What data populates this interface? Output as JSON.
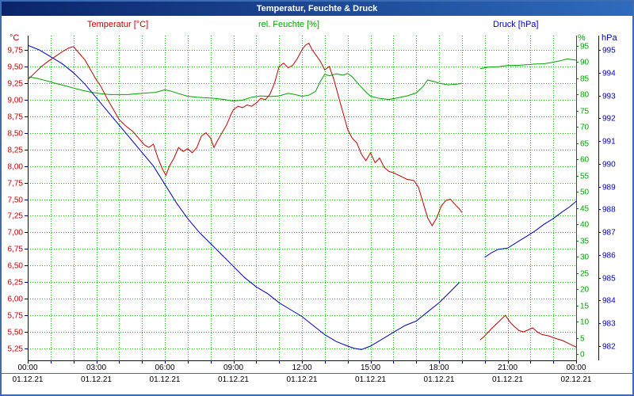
{
  "window": {
    "title": "Temperatur, Feuchte & Druck"
  },
  "chart_data": {
    "type": "line",
    "title": "Temperatur, Feuchte & Druck",
    "grid": {
      "color": "#00c800",
      "style": "dotted"
    },
    "frame_color": "#000080",
    "x": {
      "unit": "hours",
      "range": [
        0,
        24
      ],
      "major_tick_hours": 3,
      "minor_tick_hours": 1,
      "time_labels": [
        "00:00",
        "03:00",
        "06:00",
        "09:00",
        "12:00",
        "15:00",
        "18:00",
        "21:00",
        "00:00"
      ],
      "date_labels": [
        "01.12.21",
        "01.12.21",
        "01.12.21",
        "01.12.21",
        "01.12.21",
        "01.12.21",
        "01.12.21",
        "01.12.21",
        "02.12.21"
      ]
    },
    "axes": {
      "temperature": {
        "title": "Temperatur [°C]",
        "unit": "°C",
        "color": "#c00000",
        "min": 5.25,
        "max": 9.75,
        "step": 0.25,
        "tick_labels": [
          "9,75",
          "9,50",
          "9,25",
          "9,00",
          "8,75",
          "8,50",
          "8,25",
          "8,00",
          "7,75",
          "7,50",
          "7,25",
          "7,00",
          "6,75",
          "6,50",
          "6,25",
          "6,00",
          "5,75",
          "5,50",
          "5,25"
        ]
      },
      "humidity": {
        "title": "rel. Feuchte [%]",
        "unit": "%",
        "color": "#00a000",
        "min": 0,
        "max": 95,
        "step": 5,
        "tick_labels": [
          "95",
          "90",
          "85",
          "80",
          "75",
          "70",
          "65",
          "60",
          "55",
          "50",
          "45",
          "40",
          "35",
          "30",
          "25",
          "20",
          "15",
          "10",
          "5",
          "0"
        ]
      },
      "pressure": {
        "title": "Druck [hPa]",
        "unit": "hPa",
        "color": "#0000c0",
        "min": 982,
        "max": 995,
        "step": 1,
        "tick_labels": [
          "995",
          "994",
          "993",
          "992",
          "991",
          "990",
          "989",
          "988",
          "987",
          "986",
          "985",
          "984",
          "983",
          "982"
        ]
      }
    },
    "series": [
      {
        "name": "rel. Feuchte",
        "axis": "humidity",
        "segments": [
          [
            [
              0,
              85.5
            ],
            [
              0.4,
              85
            ],
            [
              0.8,
              84.3
            ],
            [
              1.2,
              83.5
            ],
            [
              1.6,
              82.8
            ],
            [
              2,
              82
            ],
            [
              2.4,
              81.3
            ],
            [
              2.8,
              80.7
            ],
            [
              3.2,
              80.3
            ],
            [
              3.6,
              80
            ],
            [
              4,
              80
            ],
            [
              4.4,
              80
            ],
            [
              4.8,
              80.3
            ],
            [
              5.2,
              80.5
            ],
            [
              5.6,
              80.7
            ],
            [
              6,
              81.5
            ],
            [
              6.3,
              81
            ],
            [
              6.6,
              80.3
            ],
            [
              7,
              79.5
            ],
            [
              7.4,
              79.2
            ],
            [
              7.8,
              79
            ],
            [
              8.2,
              78.8
            ],
            [
              8.6,
              78.5
            ],
            [
              9,
              78
            ],
            [
              9.4,
              78.3
            ],
            [
              9.8,
              79.2
            ],
            [
              10.2,
              79.6
            ],
            [
              10.6,
              79.4
            ],
            [
              11,
              79.6
            ],
            [
              11.4,
              80.4
            ],
            [
              11.7,
              80
            ],
            [
              12,
              79.5
            ],
            [
              12.3,
              79.8
            ],
            [
              12.6,
              81
            ],
            [
              12.8,
              84
            ],
            [
              13,
              86.3
            ],
            [
              13.2,
              85.8
            ],
            [
              13.5,
              86.4
            ],
            [
              13.8,
              86
            ],
            [
              14,
              86.5
            ],
            [
              14.2,
              85.5
            ],
            [
              14.5,
              83
            ],
            [
              14.8,
              80.8
            ],
            [
              15,
              79.5
            ],
            [
              15.4,
              78.8
            ],
            [
              15.8,
              78.5
            ],
            [
              16.2,
              79
            ],
            [
              16.6,
              79.6
            ],
            [
              17,
              80.5
            ],
            [
              17.3,
              82.5
            ],
            [
              17.5,
              84.5
            ],
            [
              17.8,
              84
            ],
            [
              18,
              83.5
            ],
            [
              18.4,
              83
            ],
            [
              18.8,
              83.2
            ],
            [
              19,
              83.5
            ]
          ],
          [
            [
              19.8,
              88
            ],
            [
              20.2,
              88.5
            ],
            [
              20.6,
              88.6
            ],
            [
              21,
              89
            ],
            [
              21.4,
              89
            ],
            [
              21.8,
              89.2
            ],
            [
              22.2,
              89.4
            ],
            [
              22.6,
              89.5
            ],
            [
              23,
              90
            ],
            [
              23.3,
              90.4
            ],
            [
              23.6,
              91
            ],
            [
              24,
              90.6
            ]
          ]
        ]
      },
      {
        "name": "Druck",
        "axis": "pressure",
        "segments": [
          [
            [
              0,
              995.2
            ],
            [
              0.5,
              995.0
            ],
            [
              1,
              994.7
            ],
            [
              1.5,
              994.4
            ],
            [
              2,
              994.0
            ],
            [
              2.5,
              993.5
            ],
            [
              3,
              992.9
            ],
            [
              3.5,
              992.3
            ],
            [
              4,
              991.7
            ],
            [
              4.5,
              991.1
            ],
            [
              5,
              990.5
            ],
            [
              5.5,
              989.9
            ],
            [
              6,
              989.1
            ],
            [
              6.5,
              988.3
            ],
            [
              7,
              987.6
            ],
            [
              7.5,
              987.0
            ],
            [
              8,
              986.5
            ],
            [
              8.5,
              986.0
            ],
            [
              9,
              985.5
            ],
            [
              9.5,
              985.0
            ],
            [
              10,
              984.6
            ],
            [
              10.5,
              984.3
            ],
            [
              11,
              983.9
            ],
            [
              11.5,
              983.6
            ],
            [
              12,
              983.3
            ],
            [
              12.5,
              982.9
            ],
            [
              13,
              982.5
            ],
            [
              13.5,
              982.2
            ],
            [
              14,
              982.0
            ],
            [
              14.3,
              981.9
            ],
            [
              14.6,
              981.85
            ],
            [
              15,
              982.0
            ],
            [
              15.5,
              982.3
            ],
            [
              16,
              982.6
            ],
            [
              16.5,
              982.9
            ],
            [
              17,
              983.1
            ],
            [
              17.5,
              983.5
            ],
            [
              18,
              983.9
            ],
            [
              18.5,
              984.4
            ],
            [
              18.9,
              984.8
            ]
          ],
          [
            [
              20,
              985.9
            ],
            [
              20.3,
              986.1
            ],
            [
              20.6,
              986.25
            ],
            [
              21,
              986.3
            ],
            [
              21.4,
              986.55
            ],
            [
              21.8,
              986.8
            ],
            [
              22.2,
              987.05
            ],
            [
              22.6,
              987.35
            ],
            [
              23,
              987.6
            ],
            [
              23.4,
              987.9
            ],
            [
              23.7,
              988.1
            ],
            [
              24,
              988.35
            ]
          ]
        ]
      },
      {
        "name": "Temperatur",
        "axis": "temperature",
        "segments": [
          [
            [
              0,
              9.3
            ],
            [
              0.3,
              9.4
            ],
            [
              0.6,
              9.5
            ],
            [
              0.9,
              9.58
            ],
            [
              1.2,
              9.65
            ],
            [
              1.5,
              9.72
            ],
            [
              1.8,
              9.78
            ],
            [
              2,
              9.8
            ],
            [
              2.2,
              9.72
            ],
            [
              2.5,
              9.6
            ],
            [
              2.8,
              9.42
            ],
            [
              3,
              9.3
            ],
            [
              3.2,
              9.2
            ],
            [
              3.5,
              9.0
            ],
            [
              3.8,
              8.82
            ],
            [
              4,
              8.7
            ],
            [
              4.3,
              8.6
            ],
            [
              4.6,
              8.52
            ],
            [
              4.9,
              8.4
            ],
            [
              5.1,
              8.32
            ],
            [
              5.3,
              8.28
            ],
            [
              5.5,
              8.33
            ],
            [
              5.7,
              8.12
            ],
            [
              5.9,
              7.95
            ],
            [
              6.05,
              7.86
            ],
            [
              6.2,
              8.0
            ],
            [
              6.4,
              8.12
            ],
            [
              6.6,
              8.28
            ],
            [
              6.8,
              8.22
            ],
            [
              7,
              8.26
            ],
            [
              7.2,
              8.2
            ],
            [
              7.4,
              8.28
            ],
            [
              7.6,
              8.45
            ],
            [
              7.8,
              8.5
            ],
            [
              8,
              8.42
            ],
            [
              8.15,
              8.28
            ],
            [
              8.3,
              8.38
            ],
            [
              8.5,
              8.5
            ],
            [
              8.7,
              8.62
            ],
            [
              8.9,
              8.78
            ],
            [
              9,
              8.85
            ],
            [
              9.2,
              8.9
            ],
            [
              9.4,
              8.88
            ],
            [
              9.6,
              8.92
            ],
            [
              9.8,
              8.9
            ],
            [
              10,
              8.95
            ],
            [
              10.2,
              9.02
            ],
            [
              10.4,
              9.0
            ],
            [
              10.6,
              9.08
            ],
            [
              10.8,
              9.25
            ],
            [
              11,
              9.5
            ],
            [
              11.2,
              9.55
            ],
            [
              11.4,
              9.48
            ],
            [
              11.6,
              9.52
            ],
            [
              11.8,
              9.62
            ],
            [
              12,
              9.75
            ],
            [
              12.15,
              9.82
            ],
            [
              12.3,
              9.85
            ],
            [
              12.45,
              9.75
            ],
            [
              12.6,
              9.68
            ],
            [
              12.8,
              9.58
            ],
            [
              13,
              9.45
            ],
            [
              13.2,
              9.5
            ],
            [
              13.4,
              9.3
            ],
            [
              13.6,
              9.05
            ],
            [
              13.8,
              8.8
            ],
            [
              14,
              8.55
            ],
            [
              14.2,
              8.42
            ],
            [
              14.4,
              8.35
            ],
            [
              14.6,
              8.18
            ],
            [
              14.8,
              8.08
            ],
            [
              15,
              8.2
            ],
            [
              15.2,
              8.05
            ],
            [
              15.4,
              8.12
            ],
            [
              15.6,
              7.98
            ],
            [
              15.8,
              7.92
            ],
            [
              16,
              7.9
            ],
            [
              16.3,
              7.85
            ],
            [
              16.6,
              7.8
            ],
            [
              16.9,
              7.78
            ],
            [
              17.1,
              7.68
            ],
            [
              17.3,
              7.45
            ],
            [
              17.5,
              7.22
            ],
            [
              17.7,
              7.1
            ],
            [
              17.9,
              7.22
            ],
            [
              18.1,
              7.4
            ],
            [
              18.3,
              7.48
            ],
            [
              18.5,
              7.5
            ],
            [
              18.7,
              7.42
            ],
            [
              18.9,
              7.35
            ],
            [
              19,
              7.3
            ]
          ],
          [
            [
              19.8,
              5.38
            ],
            [
              20,
              5.44
            ],
            [
              20.3,
              5.55
            ],
            [
              20.6,
              5.65
            ],
            [
              20.9,
              5.75
            ],
            [
              21.1,
              5.65
            ],
            [
              21.3,
              5.58
            ],
            [
              21.5,
              5.52
            ],
            [
              21.7,
              5.5
            ],
            [
              21.9,
              5.53
            ],
            [
              22.1,
              5.56
            ],
            [
              22.3,
              5.5
            ],
            [
              22.5,
              5.46
            ],
            [
              22.8,
              5.44
            ],
            [
              23.1,
              5.4
            ],
            [
              23.4,
              5.37
            ],
            [
              23.7,
              5.32
            ],
            [
              24,
              5.27
            ]
          ]
        ]
      }
    ]
  }
}
